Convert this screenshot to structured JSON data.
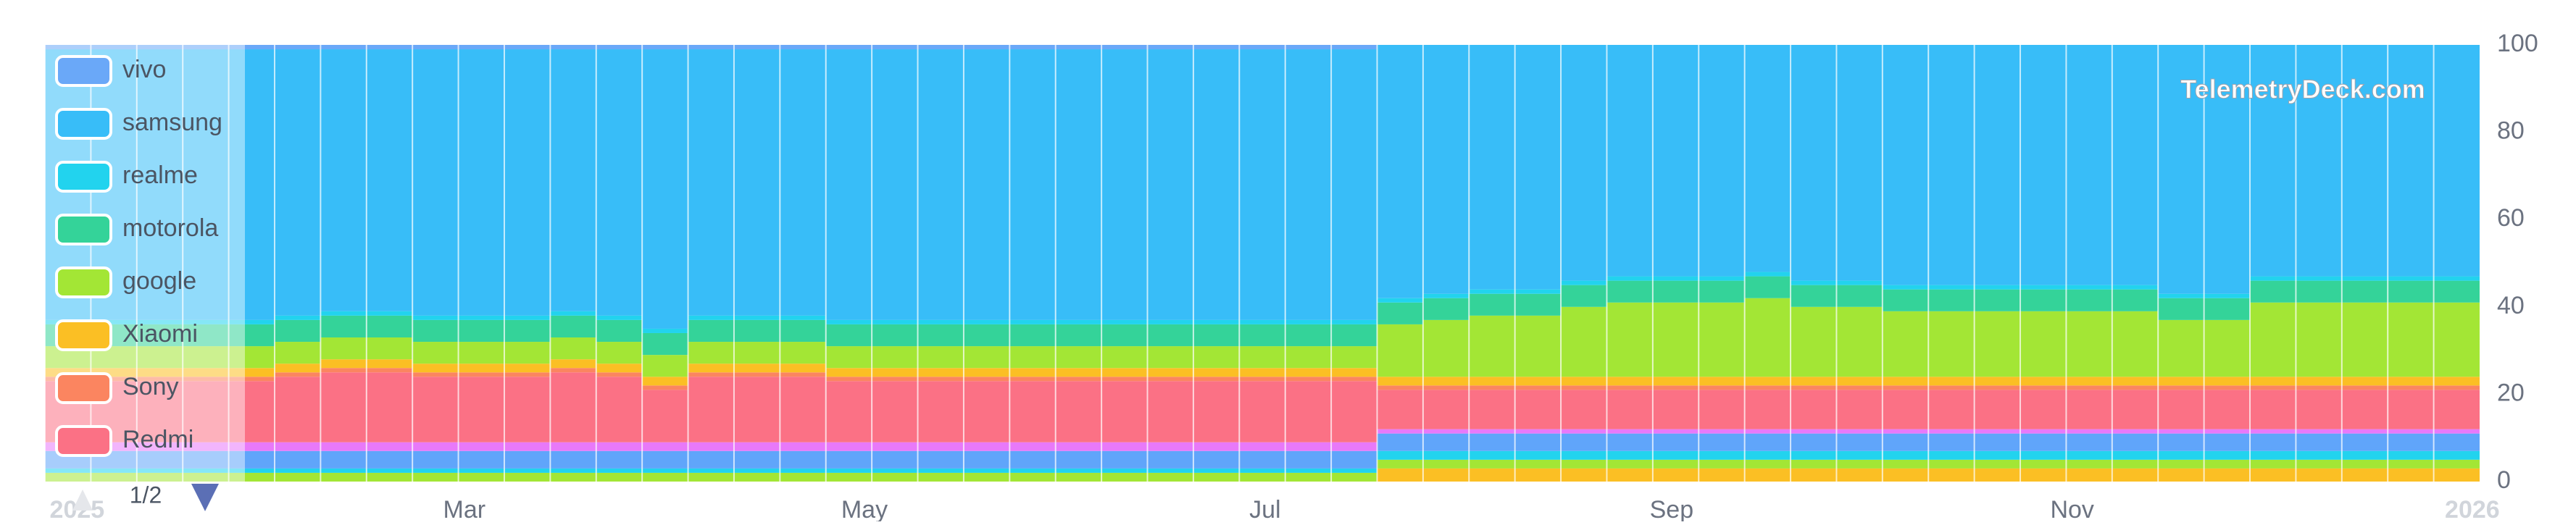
{
  "chart_data": {
    "type": "stacked_bar",
    "watermark": "TelemetryDeck.com",
    "xlim": [
      0,
      53
    ],
    "xticks": [
      {
        "value": 0.7,
        "label": "2025"
      },
      {
        "value": 9.13,
        "label": "Mar"
      },
      {
        "value": 17.84,
        "label": "May"
      },
      {
        "value": 26.56,
        "label": "Jul"
      },
      {
        "value": 35.41,
        "label": "Sep"
      },
      {
        "value": 44.13,
        "label": "Nov"
      },
      {
        "value": 52.84,
        "label": "2026"
      }
    ],
    "x": [
      0,
      1,
      2,
      3,
      4,
      5,
      6,
      7,
      8,
      9,
      10,
      11,
      12,
      13,
      14,
      15,
      16,
      17,
      18,
      19,
      20,
      21,
      22,
      23,
      24,
      25,
      26,
      27,
      28,
      29,
      30,
      31,
      32,
      33,
      34,
      35,
      36,
      37,
      38,
      39,
      40,
      41,
      42,
      43,
      44,
      45,
      46,
      47,
      48,
      49,
      50,
      51,
      52
    ],
    "ylim": [
      0,
      100
    ],
    "yticks": [
      0,
      20,
      40,
      60,
      80,
      100
    ],
    "yaxis_side": "right",
    "legend": "upper left",
    "legend_page": "1/2",
    "series": [
      {
        "color": "#fbbf24",
        "values": [
          0,
          0,
          0,
          0,
          0,
          0,
          0,
          0,
          0,
          0,
          0,
          0,
          0,
          0,
          0,
          0,
          0,
          0,
          0,
          0,
          0,
          0,
          0,
          0,
          0,
          0,
          0,
          0,
          0,
          3,
          3,
          3,
          3,
          3,
          3,
          3,
          3,
          3,
          3,
          3,
          3,
          3,
          3,
          3,
          3,
          3,
          3,
          3,
          3,
          3,
          3,
          3,
          3
        ]
      },
      {
        "color": "#a3e635",
        "values": [
          2,
          2,
          2,
          2,
          2,
          2,
          2,
          2,
          2,
          2,
          2,
          2,
          2,
          2,
          2,
          2,
          2,
          2,
          2,
          2,
          2,
          2,
          2,
          2,
          2,
          2,
          2,
          2,
          2,
          2,
          2,
          2,
          2,
          2,
          2,
          2,
          2,
          2,
          2,
          2,
          2,
          2,
          2,
          2,
          2,
          2,
          2,
          2,
          2,
          2,
          2,
          2,
          2
        ]
      },
      {
        "color": "#22d3ee",
        "values": [
          1,
          1,
          1,
          1,
          1,
          1,
          1,
          1,
          1,
          1,
          1,
          1,
          1,
          1,
          1,
          1,
          1,
          1,
          1,
          1,
          1,
          1,
          1,
          1,
          1,
          1,
          1,
          1,
          1,
          2,
          2,
          2,
          2,
          2,
          2,
          2,
          2,
          2,
          2,
          2,
          2,
          2,
          2,
          2,
          2,
          2,
          2,
          2,
          2,
          2,
          2,
          2,
          2
        ]
      },
      {
        "color": "#60a5fa",
        "values": [
          4,
          4,
          4,
          4,
          4,
          4,
          4,
          4,
          4,
          4,
          4,
          4,
          4,
          4,
          4,
          4,
          4,
          4,
          4,
          4,
          4,
          4,
          4,
          4,
          4,
          4,
          4,
          4,
          4,
          4,
          4,
          4,
          4,
          4,
          4,
          4,
          4,
          4,
          4,
          4,
          4,
          4,
          4,
          4,
          4,
          4,
          4,
          4,
          4,
          4,
          4,
          4,
          4
        ]
      },
      {
        "color": "#e879f9",
        "values": [
          2,
          2,
          2,
          2,
          2,
          2,
          2,
          2,
          2,
          2,
          2,
          2,
          2,
          2,
          2,
          2,
          2,
          2,
          2,
          2,
          2,
          2,
          2,
          2,
          2,
          2,
          2,
          2,
          2,
          1,
          1,
          1,
          1,
          1,
          1,
          1,
          1,
          1,
          1,
          1,
          1,
          1,
          1,
          1,
          1,
          1,
          1,
          1,
          1,
          1,
          1,
          1,
          1
        ]
      },
      {
        "name": "Redmi",
        "color": "#fb7185",
        "values": [
          14,
          14,
          14,
          14,
          14,
          15,
          16,
          16,
          15,
          15,
          15,
          16,
          15,
          12,
          15,
          15,
          15,
          14,
          14,
          14,
          14,
          14,
          14,
          14,
          14,
          14,
          14,
          14,
          14,
          9,
          9,
          9,
          9,
          9,
          9,
          9,
          9,
          9,
          9,
          9,
          9,
          9,
          9,
          9,
          9,
          9,
          9,
          9,
          9,
          9,
          9,
          9,
          9
        ]
      },
      {
        "name": "Sony",
        "color": "#fb8560",
        "values": [
          1,
          1,
          1,
          1,
          1,
          1,
          1,
          1,
          1,
          1,
          1,
          1,
          1,
          1,
          1,
          1,
          1,
          1,
          1,
          1,
          1,
          1,
          1,
          1,
          1,
          1,
          1,
          1,
          1,
          1,
          1,
          1,
          1,
          1,
          1,
          1,
          1,
          1,
          1,
          1,
          1,
          1,
          1,
          1,
          1,
          1,
          1,
          1,
          1,
          1,
          1,
          1,
          1
        ]
      },
      {
        "name": "Xiaomi",
        "color": "#fbbf24",
        "values": [
          2,
          2,
          2,
          2,
          2,
          2,
          2,
          2,
          2,
          2,
          2,
          2,
          2,
          2,
          2,
          2,
          2,
          2,
          2,
          2,
          2,
          2,
          2,
          2,
          2,
          2,
          2,
          2,
          2,
          2,
          2,
          2,
          2,
          2,
          2,
          2,
          2,
          2,
          2,
          2,
          2,
          2,
          2,
          2,
          2,
          2,
          2,
          2,
          2,
          2,
          2,
          2,
          2
        ]
      },
      {
        "name": "google",
        "color": "#a3e635",
        "values": [
          5,
          5,
          5,
          5,
          5,
          5,
          5,
          5,
          5,
          5,
          5,
          5,
          5,
          5,
          5,
          5,
          5,
          5,
          5,
          5,
          5,
          5,
          5,
          5,
          5,
          5,
          5,
          5,
          5,
          12,
          13,
          14,
          14,
          16,
          17,
          17,
          17,
          18,
          16,
          16,
          15,
          15,
          15,
          15,
          15,
          15,
          13,
          13,
          17,
          17,
          17,
          17,
          17
        ]
      },
      {
        "name": "motorola",
        "color": "#34d399",
        "values": [
          5,
          5,
          5,
          5,
          5,
          5,
          5,
          5,
          5,
          5,
          5,
          5,
          5,
          5,
          5,
          5,
          5,
          5,
          5,
          5,
          5,
          5,
          5,
          5,
          5,
          5,
          5,
          5,
          5,
          5,
          5,
          5,
          5,
          5,
          5,
          5,
          5,
          5,
          5,
          5,
          5,
          5,
          5,
          5,
          5,
          5,
          5,
          5,
          5,
          5,
          5,
          5,
          5
        ]
      },
      {
        "name": "realme",
        "color": "#22d3ee",
        "values": [
          1,
          1,
          1,
          1,
          1,
          1,
          1,
          1,
          1,
          1,
          1,
          1,
          1,
          1,
          1,
          1,
          1,
          1,
          1,
          1,
          1,
          1,
          1,
          1,
          1,
          1,
          1,
          1,
          1,
          1,
          1,
          1,
          1,
          1,
          1,
          1,
          1,
          1,
          1,
          1,
          1,
          1,
          1,
          1,
          1,
          1,
          1,
          1,
          1,
          1,
          1,
          1,
          1
        ]
      },
      {
        "name": "samsung",
        "color": "#38bdf8",
        "values": [
          62,
          62,
          62,
          62,
          62,
          61,
          60,
          60,
          61,
          61,
          61,
          60,
          61,
          64,
          61,
          61,
          61,
          62,
          62,
          62,
          62,
          62,
          62,
          62,
          62,
          62,
          62,
          62,
          62,
          58,
          57,
          56,
          56,
          54,
          53,
          53,
          53,
          52,
          54,
          54,
          55,
          55,
          55,
          55,
          55,
          55,
          57,
          57,
          53,
          53,
          53,
          53,
          53
        ]
      },
      {
        "name": "vivo",
        "color": "#6aa8f8",
        "values": [
          1,
          1,
          1,
          1,
          1,
          1,
          1,
          1,
          1,
          1,
          1,
          1,
          1,
          1,
          1,
          1,
          1,
          1,
          1,
          1,
          1,
          1,
          1,
          1,
          1,
          1,
          1,
          1,
          1,
          0,
          0,
          0,
          0,
          0,
          0,
          0,
          0,
          0,
          0,
          0,
          0,
          0,
          0,
          0,
          0,
          0,
          0,
          0,
          0,
          0,
          0,
          0,
          0
        ]
      }
    ]
  }
}
